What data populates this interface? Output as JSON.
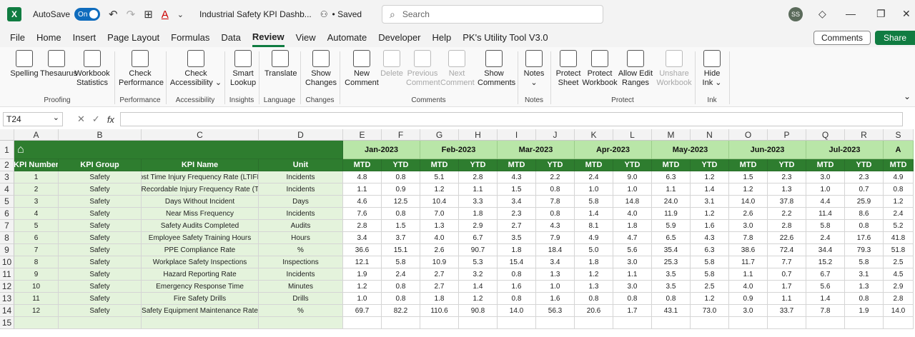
{
  "titlebar": {
    "autosave_label": "AutoSave",
    "autosave_state": "On",
    "doc_title": "Industrial Safety KPI Dashb...",
    "saved_status": "• Saved",
    "search_placeholder": "Search",
    "user_initials": "SS"
  },
  "menu": [
    "File",
    "Home",
    "Insert",
    "Page Layout",
    "Formulas",
    "Data",
    "Review",
    "View",
    "Automate",
    "Developer",
    "Help",
    "PK's Utility Tool V3.0"
  ],
  "menu_active": "Review",
  "header_buttons": {
    "comments": "Comments",
    "share": "Share"
  },
  "ribbon": {
    "buttons": [
      {
        "l1": "Spelling",
        "l2": "",
        "disabled": false
      },
      {
        "l1": "Thesaurus",
        "l2": "",
        "disabled": false
      },
      {
        "l1": "Workbook",
        "l2": "Statistics",
        "disabled": false
      },
      {
        "l1": "Check",
        "l2": "Performance",
        "disabled": false
      },
      {
        "l1": "Check",
        "l2": "Accessibility ⌄",
        "disabled": false
      },
      {
        "l1": "Smart",
        "l2": "Lookup",
        "disabled": false
      },
      {
        "l1": "Translate",
        "l2": "",
        "disabled": false
      },
      {
        "l1": "Show",
        "l2": "Changes",
        "disabled": false
      },
      {
        "l1": "New",
        "l2": "Comment",
        "disabled": false
      },
      {
        "l1": "Delete",
        "l2": "",
        "disabled": true
      },
      {
        "l1": "Previous",
        "l2": "Comment",
        "disabled": true
      },
      {
        "l1": "Next",
        "l2": "Comment",
        "disabled": true
      },
      {
        "l1": "Show",
        "l2": "Comments",
        "disabled": false
      },
      {
        "l1": "Notes",
        "l2": "⌄",
        "disabled": false
      },
      {
        "l1": "Protect",
        "l2": "Sheet",
        "disabled": false
      },
      {
        "l1": "Protect",
        "l2": "Workbook",
        "disabled": false
      },
      {
        "l1": "Allow Edit",
        "l2": "Ranges",
        "disabled": false
      },
      {
        "l1": "Unshare",
        "l2": "Workbook",
        "disabled": true
      },
      {
        "l1": "Hide",
        "l2": "Ink ⌄",
        "disabled": false
      }
    ],
    "groups": [
      "Proofing",
      "Performance",
      "Accessibility",
      "Insights",
      "Language",
      "Changes",
      "Comments",
      "Notes",
      "Protect",
      "Ink"
    ]
  },
  "formula_bar": {
    "name_box": "T24",
    "fx_label": "fx"
  },
  "sheet": {
    "columns": [
      "A",
      "B",
      "C",
      "D",
      "E",
      "F",
      "G",
      "H",
      "I",
      "J",
      "K",
      "L",
      "M",
      "N",
      "O",
      "P",
      "Q",
      "R",
      "S"
    ],
    "rows": [
      "1",
      "2",
      "3",
      "4",
      "5",
      "6",
      "7",
      "8",
      "9",
      "10",
      "11",
      "12",
      "13",
      "14",
      "15"
    ],
    "months": [
      "Jan-2023",
      "Feb-2023",
      "Mar-2023",
      "Apr-2023",
      "May-2023",
      "Jun-2023",
      "Jul-2023",
      "A"
    ],
    "headers": [
      "KPI Number",
      "KPI Group",
      "KPI Name",
      "Unit"
    ],
    "mtd": "MTD",
    "ytd": "YTD",
    "kpis": [
      {
        "num": "1",
        "group": "Safety",
        "name": "Lost Time Injury Frequency Rate (LTIFR)",
        "unit": "Incidents",
        "vals": [
          "4.8",
          "0.8",
          "5.1",
          "2.8",
          "4.3",
          "2.2",
          "2.4",
          "9.0",
          "6.3",
          "1.2",
          "1.5",
          "2.3",
          "3.0",
          "2.3",
          "4.9"
        ]
      },
      {
        "num": "2",
        "group": "Safety",
        "name": "al Recordable Injury Frequency Rate (TRI",
        "unit": "Incidents",
        "vals": [
          "1.1",
          "0.9",
          "1.2",
          "1.1",
          "1.5",
          "0.8",
          "1.0",
          "1.0",
          "1.1",
          "1.4",
          "1.2",
          "1.3",
          "1.0",
          "0.7",
          "0.8"
        ]
      },
      {
        "num": "3",
        "group": "Safety",
        "name": "Days Without Incident",
        "unit": "Days",
        "vals": [
          "4.6",
          "12.5",
          "10.4",
          "3.3",
          "3.4",
          "7.8",
          "5.8",
          "14.8",
          "24.0",
          "3.1",
          "14.0",
          "37.8",
          "4.4",
          "25.9",
          "1.2"
        ]
      },
      {
        "num": "4",
        "group": "Safety",
        "name": "Near Miss Frequency",
        "unit": "Incidents",
        "vals": [
          "7.6",
          "0.8",
          "7.0",
          "1.8",
          "2.3",
          "0.8",
          "1.4",
          "4.0",
          "11.9",
          "1.2",
          "2.6",
          "2.2",
          "11.4",
          "8.6",
          "2.4"
        ]
      },
      {
        "num": "5",
        "group": "Safety",
        "name": "Safety Audits Completed",
        "unit": "Audits",
        "vals": [
          "2.8",
          "1.5",
          "1.3",
          "2.9",
          "2.7",
          "4.3",
          "8.1",
          "1.8",
          "5.9",
          "1.6",
          "3.0",
          "2.8",
          "5.8",
          "0.8",
          "5.2"
        ]
      },
      {
        "num": "6",
        "group": "Safety",
        "name": "Employee Safety Training Hours",
        "unit": "Hours",
        "vals": [
          "3.4",
          "3.7",
          "4.0",
          "6.7",
          "3.5",
          "7.9",
          "4.9",
          "4.7",
          "6.5",
          "4.3",
          "7.8",
          "22.6",
          "2.4",
          "17.6",
          "41.8"
        ]
      },
      {
        "num": "7",
        "group": "Safety",
        "name": "PPE Compliance Rate",
        "unit": "%",
        "vals": [
          "36.6",
          "15.1",
          "2.6",
          "90.7",
          "1.8",
          "18.4",
          "5.0",
          "5.6",
          "35.4",
          "6.3",
          "38.6",
          "72.4",
          "34.4",
          "79.3",
          "51.8"
        ]
      },
      {
        "num": "8",
        "group": "Safety",
        "name": "Workplace Safety Inspections",
        "unit": "Inspections",
        "vals": [
          "12.1",
          "5.8",
          "10.9",
          "5.3",
          "15.4",
          "3.4",
          "1.8",
          "3.0",
          "25.3",
          "5.8",
          "11.7",
          "7.7",
          "15.2",
          "5.8",
          "2.5"
        ]
      },
      {
        "num": "9",
        "group": "Safety",
        "name": "Hazard Reporting Rate",
        "unit": "Incidents",
        "vals": [
          "1.9",
          "2.4",
          "2.7",
          "3.2",
          "0.8",
          "1.3",
          "1.2",
          "1.1",
          "3.5",
          "5.8",
          "1.1",
          "0.7",
          "6.7",
          "3.1",
          "4.5"
        ]
      },
      {
        "num": "10",
        "group": "Safety",
        "name": "Emergency Response Time",
        "unit": "Minutes",
        "vals": [
          "1.2",
          "0.8",
          "2.7",
          "1.4",
          "1.6",
          "1.0",
          "1.3",
          "3.0",
          "3.5",
          "2.5",
          "4.0",
          "1.7",
          "5.6",
          "1.3",
          "2.9"
        ]
      },
      {
        "num": "11",
        "group": "Safety",
        "name": "Fire Safety Drills",
        "unit": "Drills",
        "vals": [
          "1.0",
          "0.8",
          "1.8",
          "1.2",
          "0.8",
          "1.6",
          "0.8",
          "0.8",
          "0.8",
          "1.2",
          "0.9",
          "1.1",
          "1.4",
          "0.8",
          "2.8"
        ]
      },
      {
        "num": "12",
        "group": "Safety",
        "name": "Safety Equipment Maintenance Rate",
        "unit": "%",
        "vals": [
          "69.7",
          "82.2",
          "110.6",
          "90.8",
          "14.0",
          "56.3",
          "20.6",
          "1.7",
          "43.1",
          "73.0",
          "3.0",
          "33.7",
          "7.8",
          "1.9",
          "14.0"
        ]
      }
    ]
  },
  "colors": {
    "dark_green": "#2e7d2f",
    "light_green": "#b9e6a8",
    "body_green": "#e4f3dc",
    "accent": "#107c41"
  }
}
